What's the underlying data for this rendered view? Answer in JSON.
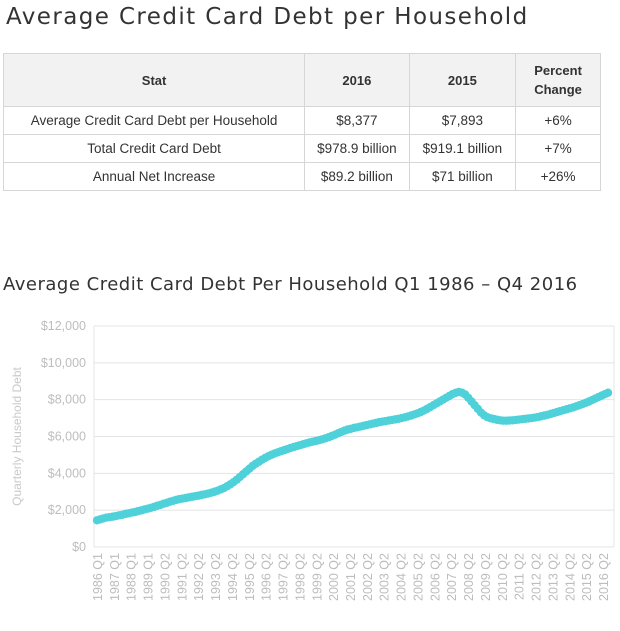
{
  "page_title": "Average Credit Card Debt per Household",
  "table": {
    "headers": [
      "Stat",
      "2016",
      "2015",
      "Percent Change"
    ],
    "rows": [
      [
        "Average Credit Card Debt per Household",
        "$8,377",
        "$7,893",
        "+6%"
      ],
      [
        "Total Credit Card Debt",
        "$978.9 billion",
        "$919.1 billion",
        "+7%"
      ],
      [
        "Annual Net Increase",
        "$89.2 billion",
        "$71 billion",
        "+26%"
      ]
    ]
  },
  "chart_data": {
    "type": "scatter",
    "title": "Average Credit Card Debt Per Household Q1 1986 – Q4 2016",
    "ylabel": "Quarterly Household Debt",
    "xlabel": "",
    "ylim": [
      0,
      12000
    ],
    "y_ticks": [
      "$0",
      "$2,000",
      "$4,000",
      "$6,000",
      "$8,000",
      "$10,000",
      "$12,000"
    ],
    "x_ticks": [
      "1986 Q1",
      "1987 Q1",
      "1988 Q1",
      "1989 Q1",
      "1990 Q2",
      "1991 Q2",
      "1992 Q2",
      "1993 Q2",
      "1994 Q2",
      "1995 Q2",
      "1996 Q2",
      "1997 Q2",
      "1998 Q2",
      "1999 Q2",
      "2000 Q2",
      "2001 Q2",
      "2002 Q2",
      "2003 Q2",
      "2004 Q2",
      "2005 Q2",
      "2006 Q2",
      "2007 Q2",
      "2008 Q2",
      "2009 Q2",
      "2010 Q2",
      "2011 Q2",
      "2012 Q2",
      "2013 Q2",
      "2014 Q2",
      "2015 Q2",
      "2016 Q2"
    ],
    "grid": true,
    "marker_color": "#4fd1d9",
    "series": [
      {
        "x_start": "1986 Q1",
        "x_end": "2016 Q4",
        "values": [
          1450,
          1500,
          1550,
          1600,
          1620,
          1650,
          1680,
          1720,
          1750,
          1800,
          1830,
          1870,
          1900,
          1950,
          1990,
          2040,
          2080,
          2130,
          2180,
          2240,
          2290,
          2350,
          2400,
          2460,
          2510,
          2560,
          2600,
          2630,
          2660,
          2700,
          2730,
          2760,
          2790,
          2830,
          2860,
          2900,
          2950,
          3000,
          3060,
          3130,
          3200,
          3300,
          3400,
          3520,
          3650,
          3800,
          3950,
          4100,
          4250,
          4400,
          4520,
          4630,
          4740,
          4840,
          4930,
          5010,
          5080,
          5140,
          5200,
          5260,
          5320,
          5380,
          5430,
          5480,
          5530,
          5580,
          5630,
          5680,
          5720,
          5760,
          5800,
          5850,
          5900,
          5960,
          6030,
          6100,
          6180,
          6250,
          6320,
          6380,
          6420,
          6470,
          6500,
          6540,
          6580,
          6620,
          6660,
          6700,
          6740,
          6780,
          6810,
          6840,
          6870,
          6900,
          6930,
          6960,
          7000,
          7040,
          7090,
          7140,
          7200,
          7260,
          7330,
          7410,
          7500,
          7600,
          7700,
          7800,
          7900,
          8000,
          8100,
          8200,
          8300,
          8370,
          8420,
          8380,
          8280,
          8100,
          7900,
          7700,
          7500,
          7300,
          7150,
          7050,
          6990,
          6950,
          6910,
          6880,
          6860,
          6860,
          6870,
          6880,
          6900,
          6920,
          6940,
          6960,
          6980,
          7000,
          7030,
          7060,
          7100,
          7140,
          7180,
          7230,
          7280,
          7330,
          7380,
          7430,
          7480,
          7530,
          7580,
          7640,
          7700,
          7760,
          7830,
          7900,
          7980,
          8060,
          8140,
          8220,
          8300,
          8377
        ]
      }
    ]
  }
}
